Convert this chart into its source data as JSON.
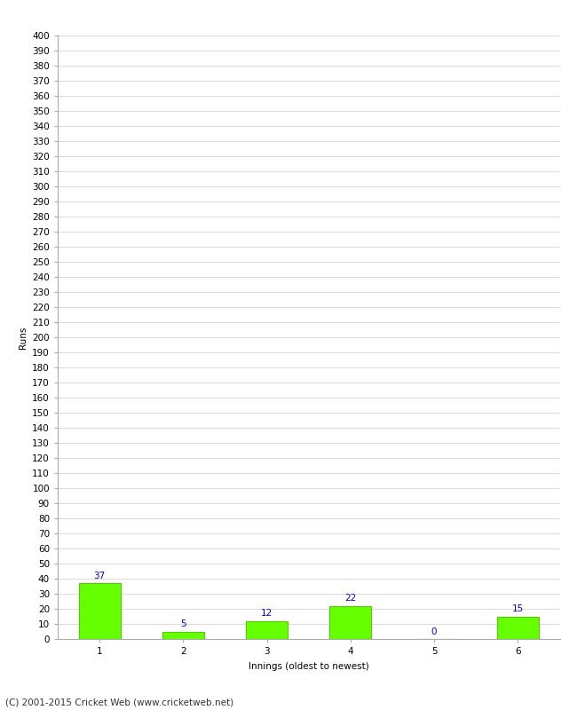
{
  "categories": [
    1,
    2,
    3,
    4,
    5,
    6
  ],
  "values": [
    37,
    5,
    12,
    22,
    0,
    15
  ],
  "bar_color": "#66ff00",
  "bar_edge_color": "#55cc00",
  "ylabel": "Runs",
  "xlabel": "Innings (oldest to newest)",
  "ylim": [
    0,
    400
  ],
  "ytick_step": 10,
  "value_label_color": "#0000cc",
  "footer_text": "(C) 2001-2015 Cricket Web (www.cricketweb.net)",
  "background_color": "#ffffff",
  "grid_color": "#cccccc",
  "value_fontsize": 7.5,
  "axis_fontsize": 7.5,
  "footer_fontsize": 7.5,
  "bar_width": 0.5
}
